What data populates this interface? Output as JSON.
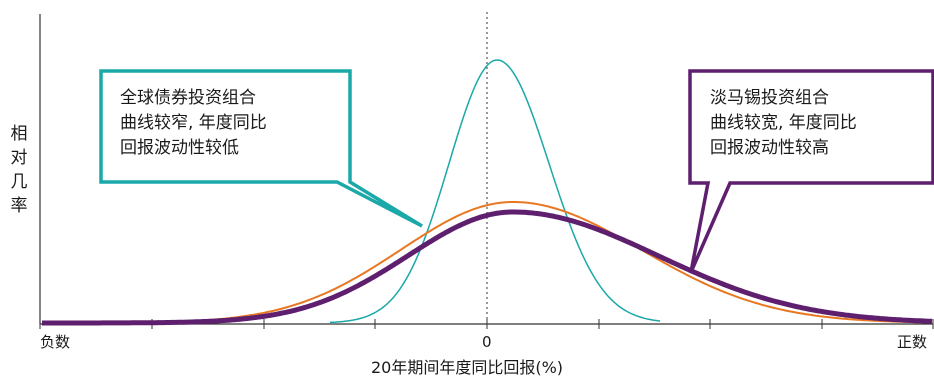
{
  "chart_data": {
    "type": "line",
    "ylabel": "相对几率",
    "xlabel": "20年期间年度同比回报(%)",
    "x_ticks": {
      "left": "负数",
      "center": "0",
      "right": "正数"
    },
    "grid": false,
    "center_line": "dotted vertical at 0",
    "series": [
      {
        "key": "global_bonds",
        "color": "#1aa8a8",
        "shape": "narrow, tall peak slightly right of 0"
      },
      {
        "key": "light_orange",
        "color": "#e87722",
        "shape": "wide, slightly taller than purple"
      },
      {
        "key": "light_purple",
        "color": "#5e1f6e",
        "shape": "wide, right-skewed, thick line"
      }
    ]
  },
  "annotations": {
    "teal": {
      "lines": [
        "全球债券投资组合",
        "曲线较窄, 年度同比",
        "回报波动性较低"
      ],
      "color": "#1aa8a8"
    },
    "purple": {
      "lines": [
        "淡马锡投资组合",
        "曲线较宽, 年度同比",
        "回报波动性较高"
      ],
      "color": "#5e1f6e"
    }
  }
}
